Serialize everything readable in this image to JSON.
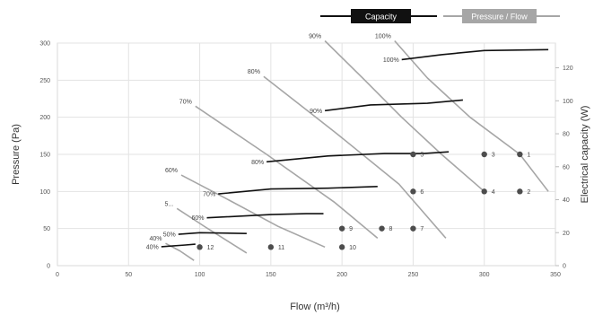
{
  "chart_data": {
    "type": "line",
    "xlabel": "Flow (m³/h)",
    "ylabel_left": "Pressure (Pa)",
    "ylabel_right": "Electrical capacity (W)",
    "xlim": [
      0,
      350
    ],
    "ylim_left": [
      0,
      300
    ],
    "ylim_right": [
      0,
      135
    ],
    "x_ticks": [
      0,
      50,
      100,
      150,
      200,
      250,
      300,
      350
    ],
    "y_left_ticks": [
      0,
      50,
      100,
      150,
      200,
      250,
      300
    ],
    "y_right_ticks": [
      0,
      20,
      40,
      60,
      80,
      100,
      120
    ],
    "grid": true,
    "legend_position": "top-right",
    "legend": [
      {
        "name": "Capacity",
        "color": "#111111",
        "text_color": "#ffffff"
      },
      {
        "name": "Pressure / Flow",
        "color": "#a6a6a6",
        "text_color": "#ffffff"
      }
    ],
    "pressure_flow_series": [
      {
        "label": "100%",
        "points": [
          [
            237,
            303
          ],
          [
            260,
            253
          ],
          [
            290,
            200
          ],
          [
            325,
            150
          ],
          [
            345,
            100
          ]
        ]
      },
      {
        "label": "90%",
        "points": [
          [
            188,
            303
          ],
          [
            215,
            252
          ],
          [
            242,
            200
          ],
          [
            270,
            150
          ],
          [
            300,
            100
          ]
        ]
      },
      {
        "label": "80%",
        "points": [
          [
            145,
            255
          ],
          [
            195,
            180
          ],
          [
            240,
            110
          ],
          [
            273,
            37
          ]
        ]
      },
      {
        "label": "70%",
        "points": [
          [
            97,
            215
          ],
          [
            147,
            150
          ],
          [
            195,
            85
          ],
          [
            225,
            37
          ]
        ]
      },
      {
        "label": "60%",
        "points": [
          [
            87,
            122
          ],
          [
            117,
            92
          ],
          [
            155,
            53
          ],
          [
            188,
            25
          ]
        ]
      },
      {
        "label": "5...",
        "points": [
          [
            84,
            77
          ],
          [
            104,
            52
          ],
          [
            133,
            17
          ]
        ]
      },
      {
        "label": "40%",
        "points": [
          [
            76,
            30
          ],
          [
            86,
            20
          ],
          [
            96,
            7
          ]
        ]
      }
    ],
    "capacity_series": [
      {
        "label": "100%",
        "points": [
          [
            242,
            125
          ],
          [
            270,
            128
          ],
          [
            300,
            130.5
          ],
          [
            345,
            131
          ]
        ]
      },
      {
        "label": "90%",
        "points": [
          [
            188,
            94
          ],
          [
            220,
            97.5
          ],
          [
            260,
            98.5
          ],
          [
            285,
            100.5
          ]
        ]
      },
      {
        "label": "80%",
        "points": [
          [
            147,
            63
          ],
          [
            190,
            66.5
          ],
          [
            230,
            68
          ],
          [
            257,
            68
          ],
          [
            275,
            69
          ]
        ]
      },
      {
        "label": "70%",
        "points": [
          [
            113,
            43.5
          ],
          [
            150,
            46.5
          ],
          [
            190,
            47
          ],
          [
            225,
            48
          ]
        ]
      },
      {
        "label": "60%",
        "points": [
          [
            105,
            29
          ],
          [
            150,
            31
          ],
          [
            175,
            31.5
          ],
          [
            187,
            31.5
          ]
        ]
      },
      {
        "label": "50%",
        "points": [
          [
            85,
            19
          ],
          [
            100,
            20
          ],
          [
            133,
            19.5
          ]
        ]
      },
      {
        "label": "40%",
        "points": [
          [
            73,
            11.5
          ],
          [
            90,
            12.5
          ],
          [
            97,
            13
          ]
        ]
      }
    ],
    "operating_points": [
      {
        "label": "1",
        "x": 325,
        "y": 150
      },
      {
        "label": "2",
        "x": 325,
        "y": 100
      },
      {
        "label": "3",
        "x": 300,
        "y": 150
      },
      {
        "label": "4",
        "x": 300,
        "y": 100
      },
      {
        "label": "5",
        "x": 250,
        "y": 150
      },
      {
        "label": "6",
        "x": 250,
        "y": 100
      },
      {
        "label": "7",
        "x": 250,
        "y": 50
      },
      {
        "label": "8",
        "x": 228,
        "y": 50
      },
      {
        "label": "9",
        "x": 200,
        "y": 50
      },
      {
        "label": "10",
        "x": 200,
        "y": 25
      },
      {
        "label": "11",
        "x": 150,
        "y": 25
      },
      {
        "label": "12",
        "x": 100,
        "y": 25
      }
    ]
  }
}
